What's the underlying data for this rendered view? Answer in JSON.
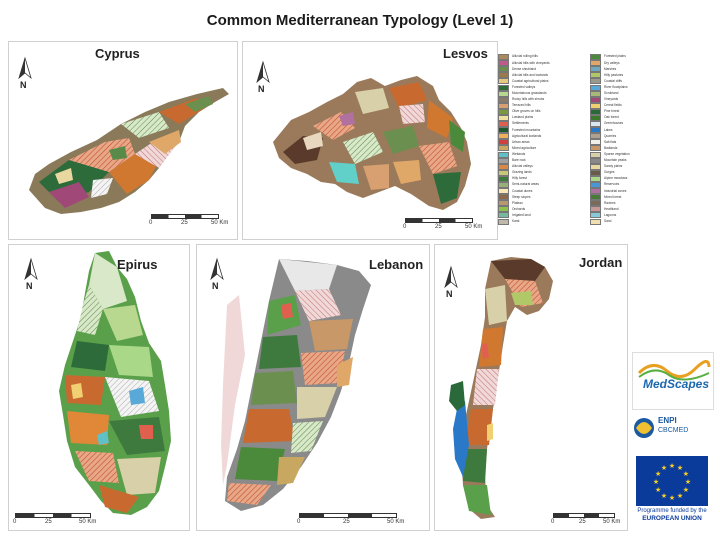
{
  "title": "Common Mediterranean Typology (Level 1)",
  "panels": {
    "cyprus": {
      "name": "Cyprus",
      "north": "N",
      "scale": [
        "0",
        "25",
        "50 Km"
      ]
    },
    "lesvos": {
      "name": "Lesvos",
      "north": "N",
      "scale": [
        "0",
        "25",
        "50 Km"
      ]
    },
    "epirus": {
      "name": "Epirus",
      "north": "N",
      "scale": [
        "0",
        "25",
        "50 Km"
      ]
    },
    "lebanon": {
      "name": "Lebanon",
      "north": "N",
      "scale": [
        "0",
        "25",
        "50 Km"
      ]
    },
    "jordan": {
      "name": "Jordan",
      "north": "N",
      "scale": [
        "0",
        "25",
        "50 Km"
      ]
    }
  },
  "legend": {
    "col1": [
      {
        "label": "Alluvial rolling hills",
        "color": "#a88a5e"
      },
      {
        "label": "Alluvial hills with vineyards",
        "color": "#c05a8a"
      },
      {
        "label": "Dense shrubland",
        "color": "#6b8f4e"
      },
      {
        "label": "Alluvial hills and lowlands",
        "color": "#9a7a4a"
      },
      {
        "label": "Coastal agricultural plains",
        "color": "#e8c880"
      },
      {
        "label": "Forested valleys",
        "color": "#2e6b3a"
      },
      {
        "label": "Mountainous grasslands",
        "color": "#b8d890"
      },
      {
        "label": "Rocky hills with shrubs",
        "color": "#8a7a6a"
      },
      {
        "label": "Terraced hills",
        "color": "#d8a070"
      },
      {
        "label": "Olive groves on hills",
        "color": "#7a9a40"
      },
      {
        "label": "Lowland plains",
        "color": "#f0e0a0"
      },
      {
        "label": "Settlements",
        "color": "#e06050"
      },
      {
        "label": "Forested mountains",
        "color": "#1e5a2e"
      },
      {
        "label": "Agricultural lowlands",
        "color": "#f0b060"
      },
      {
        "label": "Urban areas",
        "color": "#d04040"
      },
      {
        "label": "Mixed agriculture",
        "color": "#c8a860"
      },
      {
        "label": "Wetlands",
        "color": "#60c0c8"
      },
      {
        "label": "Bare rock",
        "color": "#a0a0a0"
      },
      {
        "label": "Alluvial valleys",
        "color": "#d88848"
      },
      {
        "label": "Grazing lands",
        "color": "#c8c878"
      },
      {
        "label": "Hilly forest",
        "color": "#3e7a3e"
      },
      {
        "label": "Semi-natural areas",
        "color": "#98b078"
      },
      {
        "label": "Coastal dunes",
        "color": "#f8e8b8"
      },
      {
        "label": "Steep slopes",
        "color": "#8a6a4a"
      },
      {
        "label": "Plateau",
        "color": "#b89870"
      },
      {
        "label": "Orchards",
        "color": "#90c050"
      },
      {
        "label": "Irrigated land",
        "color": "#78b8a0"
      },
      {
        "label": "Karst",
        "color": "#c0b8a8"
      }
    ],
    "col2": [
      {
        "label": "Forested plains",
        "color": "#4a8a3a"
      },
      {
        "label": "Dry valleys",
        "color": "#e0a868"
      },
      {
        "label": "Marshes",
        "color": "#70a8c0"
      },
      {
        "label": "Hilly pastures",
        "color": "#b0c868"
      },
      {
        "label": "Coastal cliffs",
        "color": "#9a9a8a"
      },
      {
        "label": "River floodplains",
        "color": "#58a8d8"
      },
      {
        "label": "Scrubland",
        "color": "#a8b878"
      },
      {
        "label": "Vineyards",
        "color": "#a04878"
      },
      {
        "label": "Cereal fields",
        "color": "#f0d070"
      },
      {
        "label": "Pine forest",
        "color": "#2a6a3a"
      },
      {
        "label": "Oak forest",
        "color": "#3a7a2a"
      },
      {
        "label": "Greenhouses",
        "color": "#d8e8f0"
      },
      {
        "label": "Lakes",
        "color": "#2a78c8"
      },
      {
        "label": "Quarries",
        "color": "#b0a090"
      },
      {
        "label": "Salt flats",
        "color": "#f0f0e8"
      },
      {
        "label": "Badlands",
        "color": "#c89868"
      },
      {
        "label": "Sparse vegetation",
        "color": "#d8d0a8"
      },
      {
        "label": "Mountain peaks",
        "color": "#888888"
      },
      {
        "label": "Sandy plains",
        "color": "#e8d8a0"
      },
      {
        "label": "Gorges",
        "color": "#6a5a4a"
      },
      {
        "label": "Alpine meadows",
        "color": "#a8d888"
      },
      {
        "label": "Reservoirs",
        "color": "#4898d8"
      },
      {
        "label": "Industrial zones",
        "color": "#b070a0"
      },
      {
        "label": "Mixed forest",
        "color": "#4a7a3a"
      },
      {
        "label": "Ravines",
        "color": "#7a6a5a"
      },
      {
        "label": "Heathland",
        "color": "#c89898"
      },
      {
        "label": "Lagoons",
        "color": "#88c8d8"
      },
      {
        "label": "Sand",
        "color": "#f0e0b0"
      }
    ]
  },
  "logos": {
    "medscapes": "MedScapes",
    "enpi_line1": "ENPI",
    "enpi_line2": "CBCMED",
    "eu_line1": "Programme funded by the",
    "eu_line2": "EUROPEAN UNION"
  }
}
